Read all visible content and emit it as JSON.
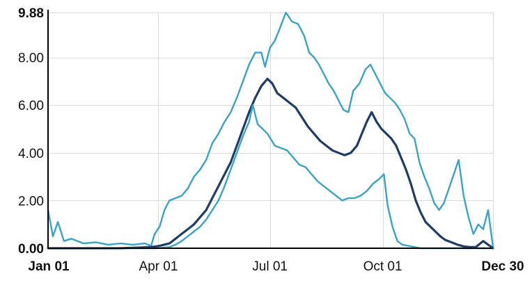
{
  "chart_data": {
    "type": "line",
    "title": "",
    "xlabel": "",
    "ylabel": "",
    "x_ticks": [
      {
        "label": "Jan 01",
        "day": 1,
        "bold": true
      },
      {
        "label": "Apr 01",
        "day": 91,
        "bold": false
      },
      {
        "label": "Jul 01",
        "day": 182,
        "bold": false
      },
      {
        "label": "Oct 01",
        "day": 274,
        "bold": false
      },
      {
        "label": "Dec 30",
        "day": 364,
        "bold": true
      }
    ],
    "y_ticks": [
      {
        "label": "0.00",
        "value": 0,
        "bold": true
      },
      {
        "label": "2.00",
        "value": 2,
        "bold": false
      },
      {
        "label": "4.00",
        "value": 4,
        "bold": false
      },
      {
        "label": "6.00",
        "value": 6,
        "bold": false
      },
      {
        "label": "8.00",
        "value": 8,
        "bold": false
      },
      {
        "label": "9.88",
        "value": 9.88,
        "bold": true
      }
    ],
    "xlim": [
      1,
      364
    ],
    "ylim": [
      0,
      9.88
    ],
    "grid": true,
    "series": [
      {
        "role": "upper",
        "color": "#37a3c6",
        "points": [
          [
            1,
            1.6
          ],
          [
            5,
            0.5
          ],
          [
            9,
            1.1
          ],
          [
            14,
            0.3
          ],
          [
            20,
            0.4
          ],
          [
            30,
            0.2
          ],
          [
            40,
            0.25
          ],
          [
            50,
            0.15
          ],
          [
            60,
            0.2
          ],
          [
            70,
            0.15
          ],
          [
            80,
            0.2
          ],
          [
            85,
            0.1
          ],
          [
            88,
            0.6
          ],
          [
            92,
            0.9
          ],
          [
            96,
            1.6
          ],
          [
            100,
            2.0
          ],
          [
            105,
            2.1
          ],
          [
            110,
            2.2
          ],
          [
            115,
            2.5
          ],
          [
            120,
            3.0
          ],
          [
            125,
            3.3
          ],
          [
            130,
            3.7
          ],
          [
            135,
            4.4
          ],
          [
            140,
            4.8
          ],
          [
            145,
            5.3
          ],
          [
            150,
            5.7
          ],
          [
            155,
            6.3
          ],
          [
            160,
            7.0
          ],
          [
            165,
            7.7
          ],
          [
            170,
            8.2
          ],
          [
            175,
            8.2
          ],
          [
            178,
            7.6
          ],
          [
            182,
            8.4
          ],
          [
            186,
            8.7
          ],
          [
            190,
            9.2
          ],
          [
            195,
            9.88
          ],
          [
            200,
            9.5
          ],
          [
            205,
            9.4
          ],
          [
            210,
            8.9
          ],
          [
            214,
            8.2
          ],
          [
            218,
            8.0
          ],
          [
            222,
            7.7
          ],
          [
            226,
            7.3
          ],
          [
            230,
            6.9
          ],
          [
            234,
            6.6
          ],
          [
            238,
            6.2
          ],
          [
            242,
            5.8
          ],
          [
            246,
            5.7
          ],
          [
            250,
            6.6
          ],
          [
            255,
            6.9
          ],
          [
            260,
            7.5
          ],
          [
            264,
            7.7
          ],
          [
            268,
            7.3
          ],
          [
            272,
            6.9
          ],
          [
            276,
            6.5
          ],
          [
            280,
            6.3
          ],
          [
            284,
            6.1
          ],
          [
            288,
            5.8
          ],
          [
            292,
            5.4
          ],
          [
            296,
            4.8
          ],
          [
            300,
            4.6
          ],
          [
            304,
            3.6
          ],
          [
            308,
            3.0
          ],
          [
            312,
            2.5
          ],
          [
            316,
            1.9
          ],
          [
            320,
            1.6
          ],
          [
            324,
            1.9
          ],
          [
            328,
            2.5
          ],
          [
            332,
            3.1
          ],
          [
            336,
            3.7
          ],
          [
            340,
            2.2
          ],
          [
            344,
            1.3
          ],
          [
            348,
            0.6
          ],
          [
            352,
            1.0
          ],
          [
            356,
            0.8
          ],
          [
            360,
            1.6
          ],
          [
            364,
            0.05
          ]
        ]
      },
      {
        "role": "median",
        "color": "#1d3c66",
        "points": [
          [
            1,
            0
          ],
          [
            60,
            0
          ],
          [
            85,
            0.05
          ],
          [
            92,
            0.1
          ],
          [
            100,
            0.2
          ],
          [
            105,
            0.4
          ],
          [
            110,
            0.6
          ],
          [
            115,
            0.8
          ],
          [
            120,
            1.0
          ],
          [
            125,
            1.3
          ],
          [
            130,
            1.6
          ],
          [
            135,
            2.1
          ],
          [
            140,
            2.6
          ],
          [
            145,
            3.1
          ],
          [
            150,
            3.6
          ],
          [
            155,
            4.3
          ],
          [
            160,
            5.0
          ],
          [
            165,
            5.7
          ],
          [
            170,
            6.3
          ],
          [
            175,
            6.8
          ],
          [
            180,
            7.1
          ],
          [
            184,
            6.9
          ],
          [
            188,
            6.5
          ],
          [
            193,
            6.3
          ],
          [
            198,
            6.1
          ],
          [
            203,
            5.9
          ],
          [
            208,
            5.5
          ],
          [
            213,
            5.1
          ],
          [
            218,
            4.8
          ],
          [
            223,
            4.5
          ],
          [
            228,
            4.3
          ],
          [
            233,
            4.1
          ],
          [
            238,
            4.0
          ],
          [
            243,
            3.9
          ],
          [
            248,
            4.0
          ],
          [
            253,
            4.3
          ],
          [
            257,
            4.8
          ],
          [
            261,
            5.3
          ],
          [
            265,
            5.7
          ],
          [
            269,
            5.3
          ],
          [
            273,
            5.0
          ],
          [
            277,
            4.8
          ],
          [
            281,
            4.6
          ],
          [
            285,
            4.3
          ],
          [
            289,
            3.8
          ],
          [
            293,
            3.3
          ],
          [
            297,
            2.7
          ],
          [
            301,
            2.0
          ],
          [
            305,
            1.5
          ],
          [
            309,
            1.1
          ],
          [
            313,
            0.9
          ],
          [
            317,
            0.7
          ],
          [
            321,
            0.5
          ],
          [
            325,
            0.35
          ],
          [
            330,
            0.25
          ],
          [
            335,
            0.15
          ],
          [
            340,
            0.08
          ],
          [
            345,
            0.05
          ],
          [
            350,
            0.05
          ],
          [
            356,
            0.3
          ],
          [
            364,
            0
          ]
        ]
      },
      {
        "role": "lower",
        "color": "#37a3c6",
        "points": [
          [
            1,
            0
          ],
          [
            60,
            0
          ],
          [
            90,
            0
          ],
          [
            100,
            0.05
          ],
          [
            105,
            0.15
          ],
          [
            110,
            0.3
          ],
          [
            115,
            0.5
          ],
          [
            120,
            0.7
          ],
          [
            125,
            0.9
          ],
          [
            130,
            1.2
          ],
          [
            135,
            1.6
          ],
          [
            140,
            2.0
          ],
          [
            145,
            2.6
          ],
          [
            150,
            3.3
          ],
          [
            155,
            4.0
          ],
          [
            160,
            4.7
          ],
          [
            165,
            5.3
          ],
          [
            168,
            6.0
          ],
          [
            172,
            5.2
          ],
          [
            176,
            5.0
          ],
          [
            180,
            4.8
          ],
          [
            186,
            4.3
          ],
          [
            191,
            4.2
          ],
          [
            196,
            4.1
          ],
          [
            201,
            3.8
          ],
          [
            206,
            3.5
          ],
          [
            211,
            3.4
          ],
          [
            216,
            3.1
          ],
          [
            221,
            2.8
          ],
          [
            226,
            2.6
          ],
          [
            231,
            2.4
          ],
          [
            236,
            2.2
          ],
          [
            241,
            2.0
          ],
          [
            246,
            2.1
          ],
          [
            251,
            2.1
          ],
          [
            256,
            2.2
          ],
          [
            261,
            2.4
          ],
          [
            266,
            2.7
          ],
          [
            271,
            2.9
          ],
          [
            275,
            3.1
          ],
          [
            278,
            1.8
          ],
          [
            282,
            0.9
          ],
          [
            286,
            0.3
          ],
          [
            290,
            0.15
          ],
          [
            295,
            0.1
          ],
          [
            300,
            0.05
          ],
          [
            305,
            0
          ],
          [
            364,
            0
          ]
        ]
      }
    ]
  }
}
